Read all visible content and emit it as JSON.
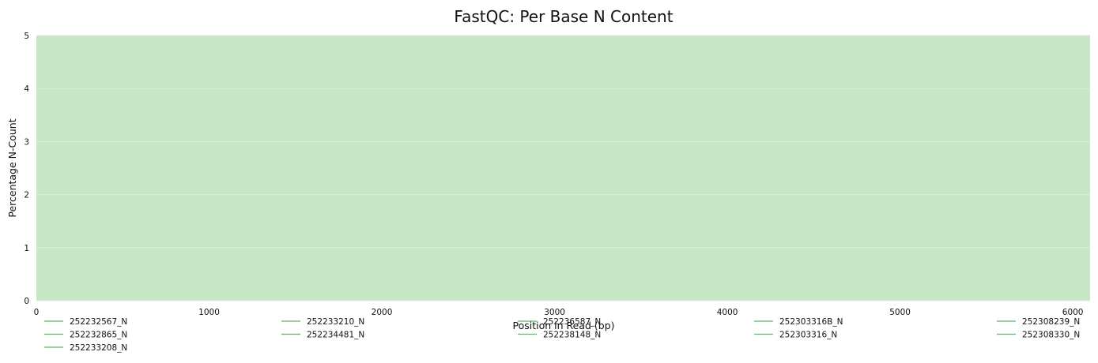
{
  "chart_data": {
    "type": "line",
    "title": "FastQC: Per Base N Content",
    "xlabel": "Position in Read (bp)",
    "ylabel": "Percentage N-Count",
    "xlim": [
      0,
      6100
    ],
    "ylim": [
      0,
      5
    ],
    "x_ticks": [
      "0",
      "1000",
      "2000",
      "3000",
      "4000",
      "5000",
      "6000"
    ],
    "y_ticks": [
      "0",
      "1",
      "2",
      "3",
      "4",
      "5"
    ],
    "grid": true,
    "background_band": {
      "from": 0,
      "to": 5,
      "color": "#c5e7c5"
    },
    "series_color": "#5cb85c",
    "legend_position": "bottom",
    "series": [
      {
        "name": "252232567_N",
        "values": []
      },
      {
        "name": "252232865_N",
        "values": []
      },
      {
        "name": "252233208_N",
        "values": []
      },
      {
        "name": "252233210_N",
        "values": []
      },
      {
        "name": "252234481_N",
        "values": []
      },
      {
        "name": "252236587_N",
        "values": []
      },
      {
        "name": "252238148_N",
        "values": []
      },
      {
        "name": "252303316B_N",
        "values": []
      },
      {
        "name": "252303316_N",
        "values": []
      },
      {
        "name": "252308239_N",
        "values": []
      },
      {
        "name": "252308330_N",
        "values": []
      }
    ]
  }
}
